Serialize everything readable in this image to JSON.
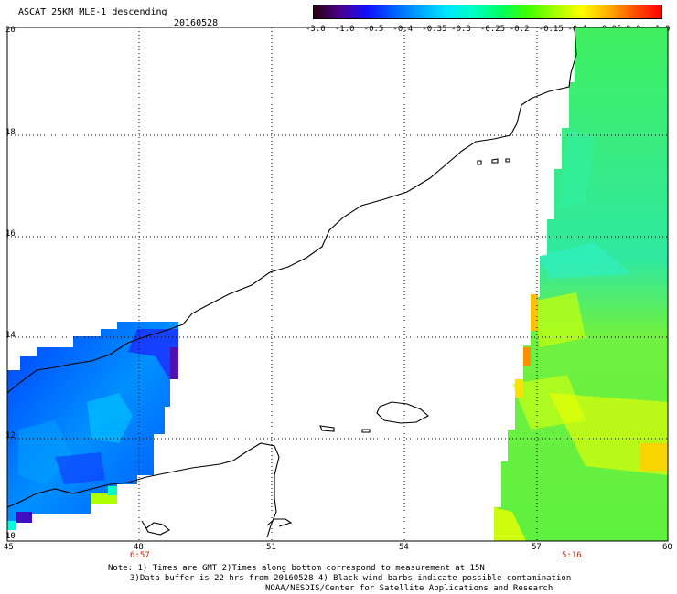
{
  "header": {
    "title": "ASCAT 25KM MLE-1 descending",
    "date": "20160528"
  },
  "colorbar": {
    "labels": [
      "-3.0",
      "-1.0",
      "-0.5",
      "-0.4",
      "-0.35",
      "-0.3",
      "-0.25",
      "-0.2",
      "-0.15",
      "-0.1",
      "-0.05",
      "0.0",
      "1.0"
    ],
    "colors": [
      "#2a0010",
      "#4a0090",
      "#1010ff",
      "#0060ff",
      "#00a8ff",
      "#00e8ff",
      "#00ffc0",
      "#00ff60",
      "#40ff00",
      "#a0ff00",
      "#ffff00",
      "#ffb000",
      "#ff5000",
      "#ff0000"
    ]
  },
  "axes": {
    "lon_ticks": [
      "45",
      "48",
      "51",
      "54",
      "57",
      "60"
    ],
    "lat_ticks": [
      "10",
      "12",
      "14",
      "16",
      "18",
      "20"
    ]
  },
  "times": {
    "west_time": "6:57",
    "east_time": "5:16"
  },
  "notes": {
    "line1": "Note: 1) Times are GMT 2)Times along bottom correspond to measurement at 15N",
    "line2": "3)Data buffer is 22 hrs from 20160528 4) Black wind barbs indicate possible contamination",
    "line3": "NOAA/NESDIS/Center for Satellite Applications and Research"
  }
}
